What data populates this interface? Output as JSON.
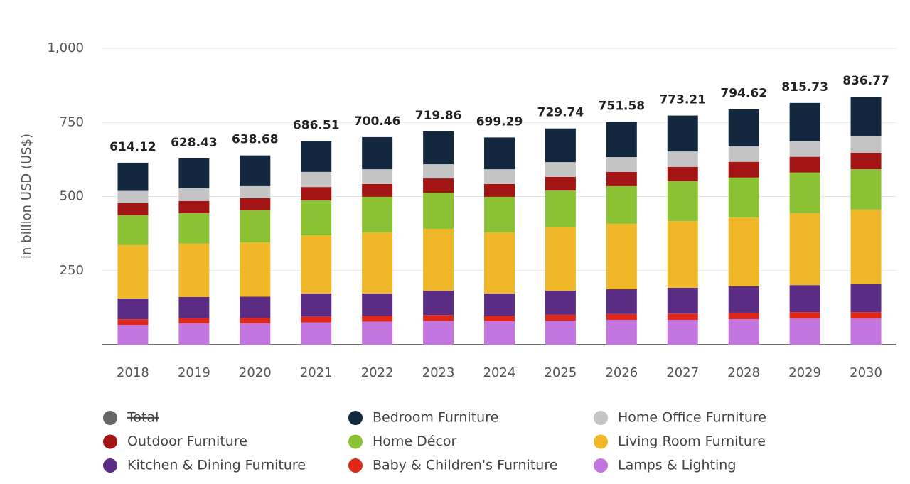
{
  "chart_data": {
    "type": "stacked-bar",
    "y_label": "in billion USD (US$)",
    "categories": [
      "2018",
      "2019",
      "2020",
      "2021",
      "2022",
      "2023",
      "2024",
      "2025",
      "2026",
      "2027",
      "2028",
      "2029",
      "2030"
    ],
    "ylim": [
      0,
      1000
    ],
    "yticks": [
      250,
      500,
      750,
      {
        "value": 1000,
        "label": "1,000"
      }
    ],
    "grid": true,
    "series": [
      {
        "name": "Total",
        "color": "#666666",
        "hidden": true,
        "values": [
          614.12,
          628.43,
          638.68,
          686.51,
          700.46,
          719.86,
          699.29,
          729.74,
          751.58,
          773.21,
          794.62,
          815.73,
          836.77
        ]
      },
      {
        "name": "Bedroom Furniture",
        "color": "#13283f",
        "values": [
          95.12,
          100.43,
          103.68,
          103.51,
          108.46,
          110.86,
          107.29,
          113.74,
          118.58,
          121.21,
          125.62,
          129.73,
          133.77
        ]
      },
      {
        "name": "Home Office Furniture",
        "color": "#c4c4c4",
        "values": [
          41,
          43,
          41,
          51,
          50,
          48,
          50,
          50,
          50,
          52,
          52,
          52,
          55
        ]
      },
      {
        "name": "Outdoor Furniture",
        "color": "#a31414",
        "values": [
          41,
          41,
          41,
          45,
          43,
          48,
          43,
          46,
          48,
          48,
          53,
          53,
          56
        ]
      },
      {
        "name": "Home Décor",
        "color": "#8ac234",
        "values": [
          101,
          103,
          108,
          118,
          120,
          122,
          120,
          124,
          127,
          135,
          135,
          137,
          136
        ]
      },
      {
        "name": "Living Room Furniture",
        "color": "#f0b828",
        "values": [
          180,
          180,
          183,
          196,
          206,
          209,
          206,
          214,
          221,
          225,
          232,
          243,
          252
        ]
      },
      {
        "name": "Kitchen & Dining Furniture",
        "color": "#5b2c83",
        "values": [
          70,
          72,
          72,
          78,
          75,
          82,
          75,
          81,
          83,
          87,
          89,
          91,
          94
        ]
      },
      {
        "name": "Baby & Children's Furniture",
        "color": "#e0281a",
        "values": [
          19,
          17,
          18,
          20,
          20,
          20,
          19,
          20,
          20,
          21,
          22,
          22,
          22
        ]
      },
      {
        "name": "Lamps & Lighting",
        "color": "#c375e0",
        "values": [
          67,
          72,
          72,
          75,
          78,
          80,
          79,
          81,
          84,
          84,
          86,
          88,
          88
        ]
      }
    ]
  }
}
